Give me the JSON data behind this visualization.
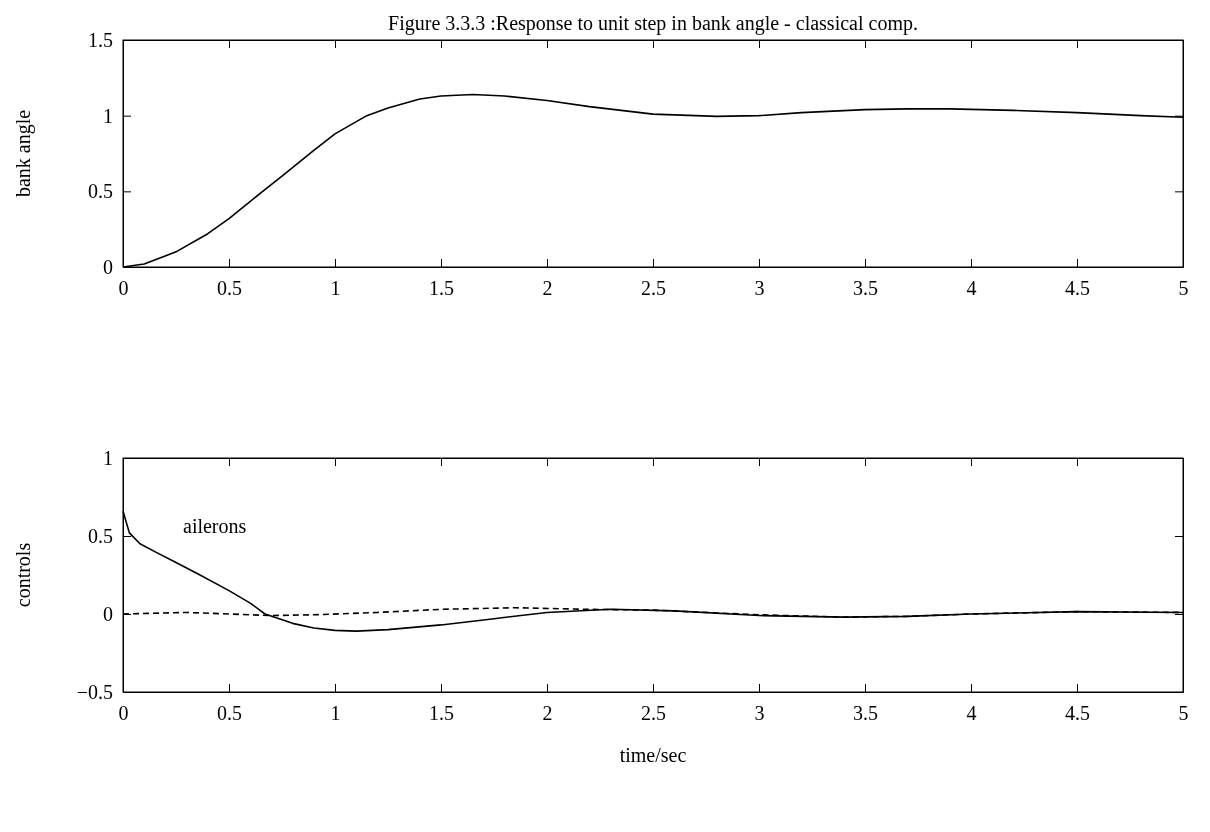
{
  "chart_data": [
    {
      "type": "line",
      "title": "Figure 3.3.3 :Response to unit step in bank angle - classical comp.",
      "ylabel": "bank angle",
      "xlim": [
        0,
        5
      ],
      "xticks": [
        0,
        0.5,
        1,
        1.5,
        2,
        2.5,
        3,
        3.5,
        4,
        4.5,
        5
      ],
      "ylim": [
        0,
        1.5
      ],
      "yticks": [
        0,
        0.5,
        1,
        1.5
      ],
      "grid": false,
      "series": [
        {
          "color": "#000000",
          "line_style": "solid",
          "x": [
            0,
            0.1,
            0.25,
            0.4,
            0.5,
            0.65,
            0.75,
            0.9,
            1,
            1.15,
            1.25,
            1.4,
            1.5,
            1.65,
            1.8,
            2,
            2.2,
            2.5,
            2.8,
            3,
            3.2,
            3.5,
            3.7,
            3.9,
            4.2,
            4.5,
            4.8,
            5
          ],
          "values": [
            0,
            0.02,
            0.1,
            0.22,
            0.32,
            0.49,
            0.6,
            0.77,
            0.88,
            1.0,
            1.05,
            1.11,
            1.13,
            1.14,
            1.13,
            1.1,
            1.06,
            1.01,
            0.995,
            1.0,
            1.02,
            1.04,
            1.045,
            1.045,
            1.035,
            1.02,
            1.0,
            0.99
          ]
        }
      ]
    },
    {
      "type": "line",
      "xlabel": "time/sec",
      "ylabel": "controls",
      "xlim": [
        0,
        5
      ],
      "xticks": [
        0,
        0.5,
        1,
        1.5,
        2,
        2.5,
        3,
        3.5,
        4,
        4.5,
        5
      ],
      "ylim": [
        -0.5,
        1
      ],
      "yticks": [
        -0.5,
        0,
        0.5,
        1
      ],
      "grid": false,
      "series": [
        {
          "name": "ailerons",
          "color": "#000000",
          "line_style": "solid",
          "x": [
            0,
            0.03,
            0.08,
            0.15,
            0.25,
            0.35,
            0.5,
            0.6,
            0.67,
            0.8,
            0.9,
            1.0,
            1.1,
            1.25,
            1.5,
            1.75,
            2,
            2.3,
            2.6,
            3,
            3.4,
            3.7,
            4,
            4.5,
            5
          ],
          "values": [
            0.66,
            0.52,
            0.45,
            0.4,
            0.33,
            0.26,
            0.15,
            0.07,
            0.0,
            -0.06,
            -0.09,
            -0.105,
            -0.11,
            -0.1,
            -0.07,
            -0.03,
            0.01,
            0.03,
            0.02,
            -0.01,
            -0.02,
            -0.015,
            0.0,
            0.015,
            0.01
          ]
        },
        {
          "color": "#000000",
          "line_style": "dashed",
          "x": [
            0,
            0.3,
            0.5,
            0.7,
            0.9,
            1.2,
            1.5,
            1.85,
            2.2,
            2.5,
            3,
            3.4,
            3.7,
            4,
            4.5,
            5
          ],
          "values": [
            0.0,
            0.01,
            0.0,
            -0.01,
            -0.005,
            0.01,
            0.03,
            0.04,
            0.03,
            0.025,
            -0.005,
            -0.02,
            -0.015,
            0.0,
            0.015,
            0.01
          ]
        }
      ]
    }
  ]
}
